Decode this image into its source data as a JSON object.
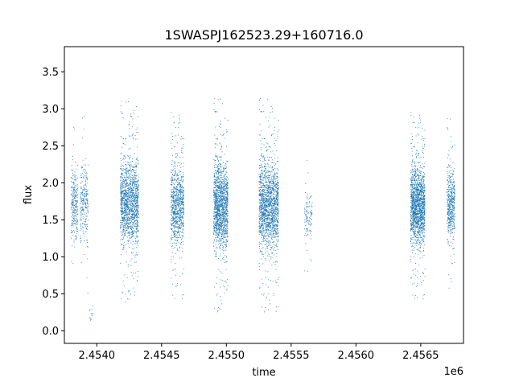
{
  "chart_data": {
    "type": "scatter",
    "title": "1SWASPJ162523.29+160716.0",
    "xlabel": "time",
    "ylabel": "flux",
    "x_offset_label": "1e6",
    "xlim": [
      2.45375,
      2.45683
    ],
    "ylim": [
      -0.17,
      3.84
    ],
    "x_ticks": [
      2.454,
      2.4545,
      2.455,
      2.4555,
      2.456,
      2.4565
    ],
    "x_tick_labels": [
      "2.4540",
      "2.4545",
      "2.4550",
      "2.4555",
      "2.4560",
      "2.4565"
    ],
    "y_ticks": [
      0.0,
      0.5,
      1.0,
      1.5,
      2.0,
      2.5,
      3.0,
      3.5
    ],
    "y_tick_labels": [
      "0.0",
      "0.5",
      "1.0",
      "1.5",
      "2.0",
      "2.5",
      "3.0",
      "3.5"
    ],
    "grid": false,
    "legend": "none",
    "marker_color": "#1f77b4",
    "series": [
      {
        "clusters": [
          {
            "x_range": [
              2.4538,
              2.45385
            ],
            "core_y": [
              1.05,
              2.35
            ],
            "count": 260
          },
          {
            "x_range": [
              2.45387,
              2.45393
            ],
            "core_y": [
              1.0,
              2.45
            ],
            "count": 260
          },
          {
            "x_range": [
              2.45394,
              2.45397
            ],
            "core_y": [
              0.0,
              0.4
            ],
            "count": 14
          },
          {
            "x_range": [
              2.45418,
              2.45432
            ],
            "core_y": [
              0.95,
              2.55
            ],
            "count": 1500
          },
          {
            "x_range": [
              2.45457,
              2.45467
            ],
            "core_y": [
              0.95,
              2.45
            ],
            "count": 900
          },
          {
            "x_range": [
              2.4549,
              2.45501
            ],
            "core_y": [
              0.85,
              2.55
            ],
            "count": 1500
          },
          {
            "x_range": [
              2.45525,
              2.4554
            ],
            "core_y": [
              0.85,
              2.55
            ],
            "count": 1700
          },
          {
            "x_range": [
              2.4556,
              2.45566
            ],
            "core_y": [
              1.1,
              2.0
            ],
            "count": 120
          },
          {
            "x_range": [
              2.45642,
              2.45653
            ],
            "core_y": [
              0.95,
              2.45
            ],
            "count": 1600
          },
          {
            "x_range": [
              2.4567,
              2.45676
            ],
            "core_y": [
              1.05,
              2.4
            ],
            "count": 500
          }
        ]
      }
    ]
  }
}
